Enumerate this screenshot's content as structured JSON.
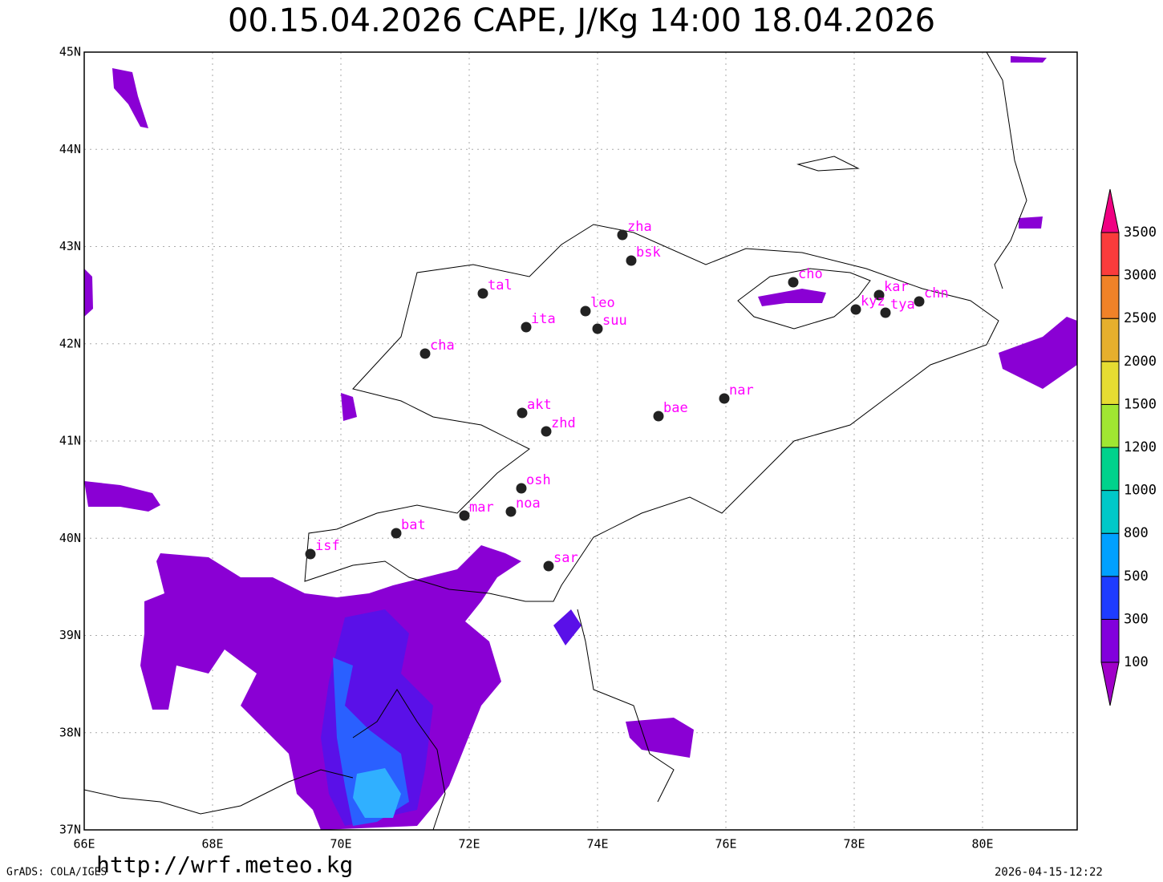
{
  "title": "00.15.04.2026 CAPE, J/Kg 14:00 18.04.2026",
  "lat_labels": [
    "45N",
    "44N",
    "43N",
    "42N",
    "41N",
    "40N",
    "39N",
    "38N",
    "37N"
  ],
  "lon_labels": [
    "66E",
    "68E",
    "70E",
    "72E",
    "74E",
    "76E",
    "78E",
    "80E"
  ],
  "stations": [
    "zha",
    "bsk",
    "cho",
    "kar",
    "chn",
    "kyz",
    "tya",
    "tal",
    "leo",
    "suu",
    "ita",
    "cha",
    "nar",
    "bae",
    "akt",
    "zhd",
    "osh",
    "noa",
    "mar",
    "bat",
    "isf",
    "sar"
  ],
  "colorbar": {
    "labels": [
      "100",
      "300",
      "500",
      "800",
      "1000",
      "1200",
      "1500",
      "2000",
      "2500",
      "3000",
      "3500"
    ],
    "colors": [
      "#a000c8",
      "#8200dc",
      "#1e3cff",
      "#00a0ff",
      "#00c8c8",
      "#00d28c",
      "#a0e632",
      "#e6dc32",
      "#e6af2d",
      "#f08228",
      "#fa3c3c",
      "#f00082"
    ]
  },
  "footer": {
    "grads": "GrADS: COLA/IGES",
    "url": "http://wrf.meteo.kg",
    "timestamp": "2026-04-15-12:22"
  }
}
